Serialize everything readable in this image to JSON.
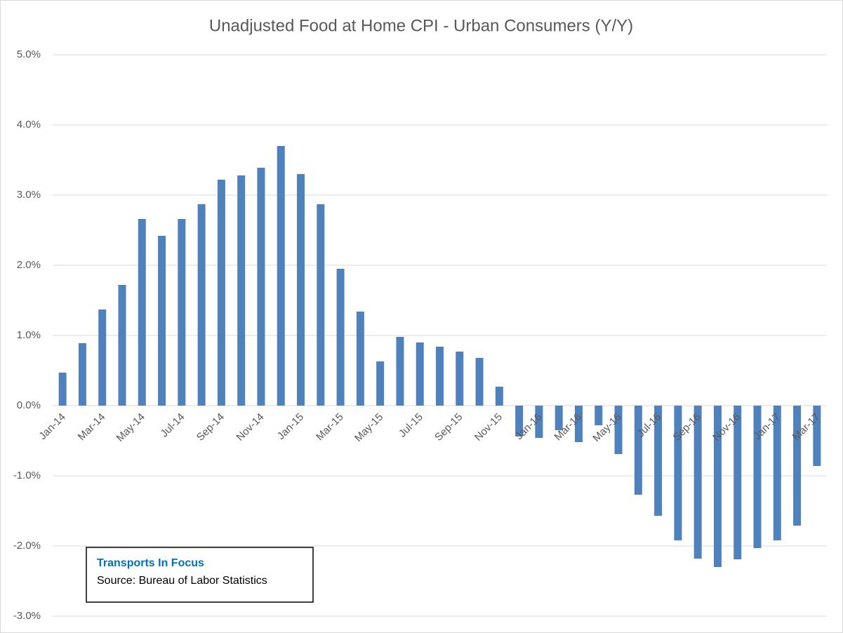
{
  "chart_data": {
    "type": "bar",
    "title": "Unadjusted Food at Home CPI - Urban Consumers (Y/Y)",
    "categories": [
      "Jan-14",
      null,
      "Mar-14",
      null,
      "May-14",
      null,
      "Jul-14",
      null,
      "Sep-14",
      null,
      "Nov-14",
      null,
      "Jan-15",
      null,
      "Mar-15",
      null,
      "May-15",
      null,
      "Jul-15",
      null,
      "Sep-15",
      null,
      "Nov-15",
      null,
      "Jan-16",
      null,
      "Mar-16",
      null,
      "May-16",
      null,
      "Jul-16",
      null,
      "Sep-16",
      null,
      "Nov-16",
      null,
      "Jan-17",
      null,
      "Mar-17"
    ],
    "values": [
      0.47,
      0.89,
      1.37,
      1.72,
      2.66,
      2.42,
      2.66,
      2.87,
      3.22,
      3.28,
      3.39,
      3.7,
      3.3,
      2.87,
      1.95,
      1.34,
      0.63,
      0.98,
      0.9,
      0.84,
      0.77,
      0.68,
      0.27,
      -0.44,
      -0.46,
      -0.35,
      -0.52,
      -0.28,
      -0.69,
      -1.27,
      -1.57,
      -1.92,
      -2.18,
      -2.3,
      -2.19,
      -2.03,
      -1.92,
      -1.71,
      -0.86
    ],
    "color": "#4f81bd",
    "ylim": [
      -3,
      5
    ],
    "yticks": [
      {
        "value": -3,
        "label": "-3.0%"
      },
      {
        "value": -2,
        "label": "-2.0%"
      },
      {
        "value": -1,
        "label": "-1.0%"
      },
      {
        "value": 0,
        "label": "0.0%"
      },
      {
        "value": 1,
        "label": "1.0%"
      },
      {
        "value": 2,
        "label": "2.0%"
      },
      {
        "value": 3,
        "label": "3.0%"
      },
      {
        "value": 4,
        "label": "4.0%"
      },
      {
        "value": 5,
        "label": "5.0%"
      }
    ],
    "grid": true,
    "annotations": [
      "Transports  In Focus",
      "Source: Bureau of Labor Statistics"
    ]
  }
}
